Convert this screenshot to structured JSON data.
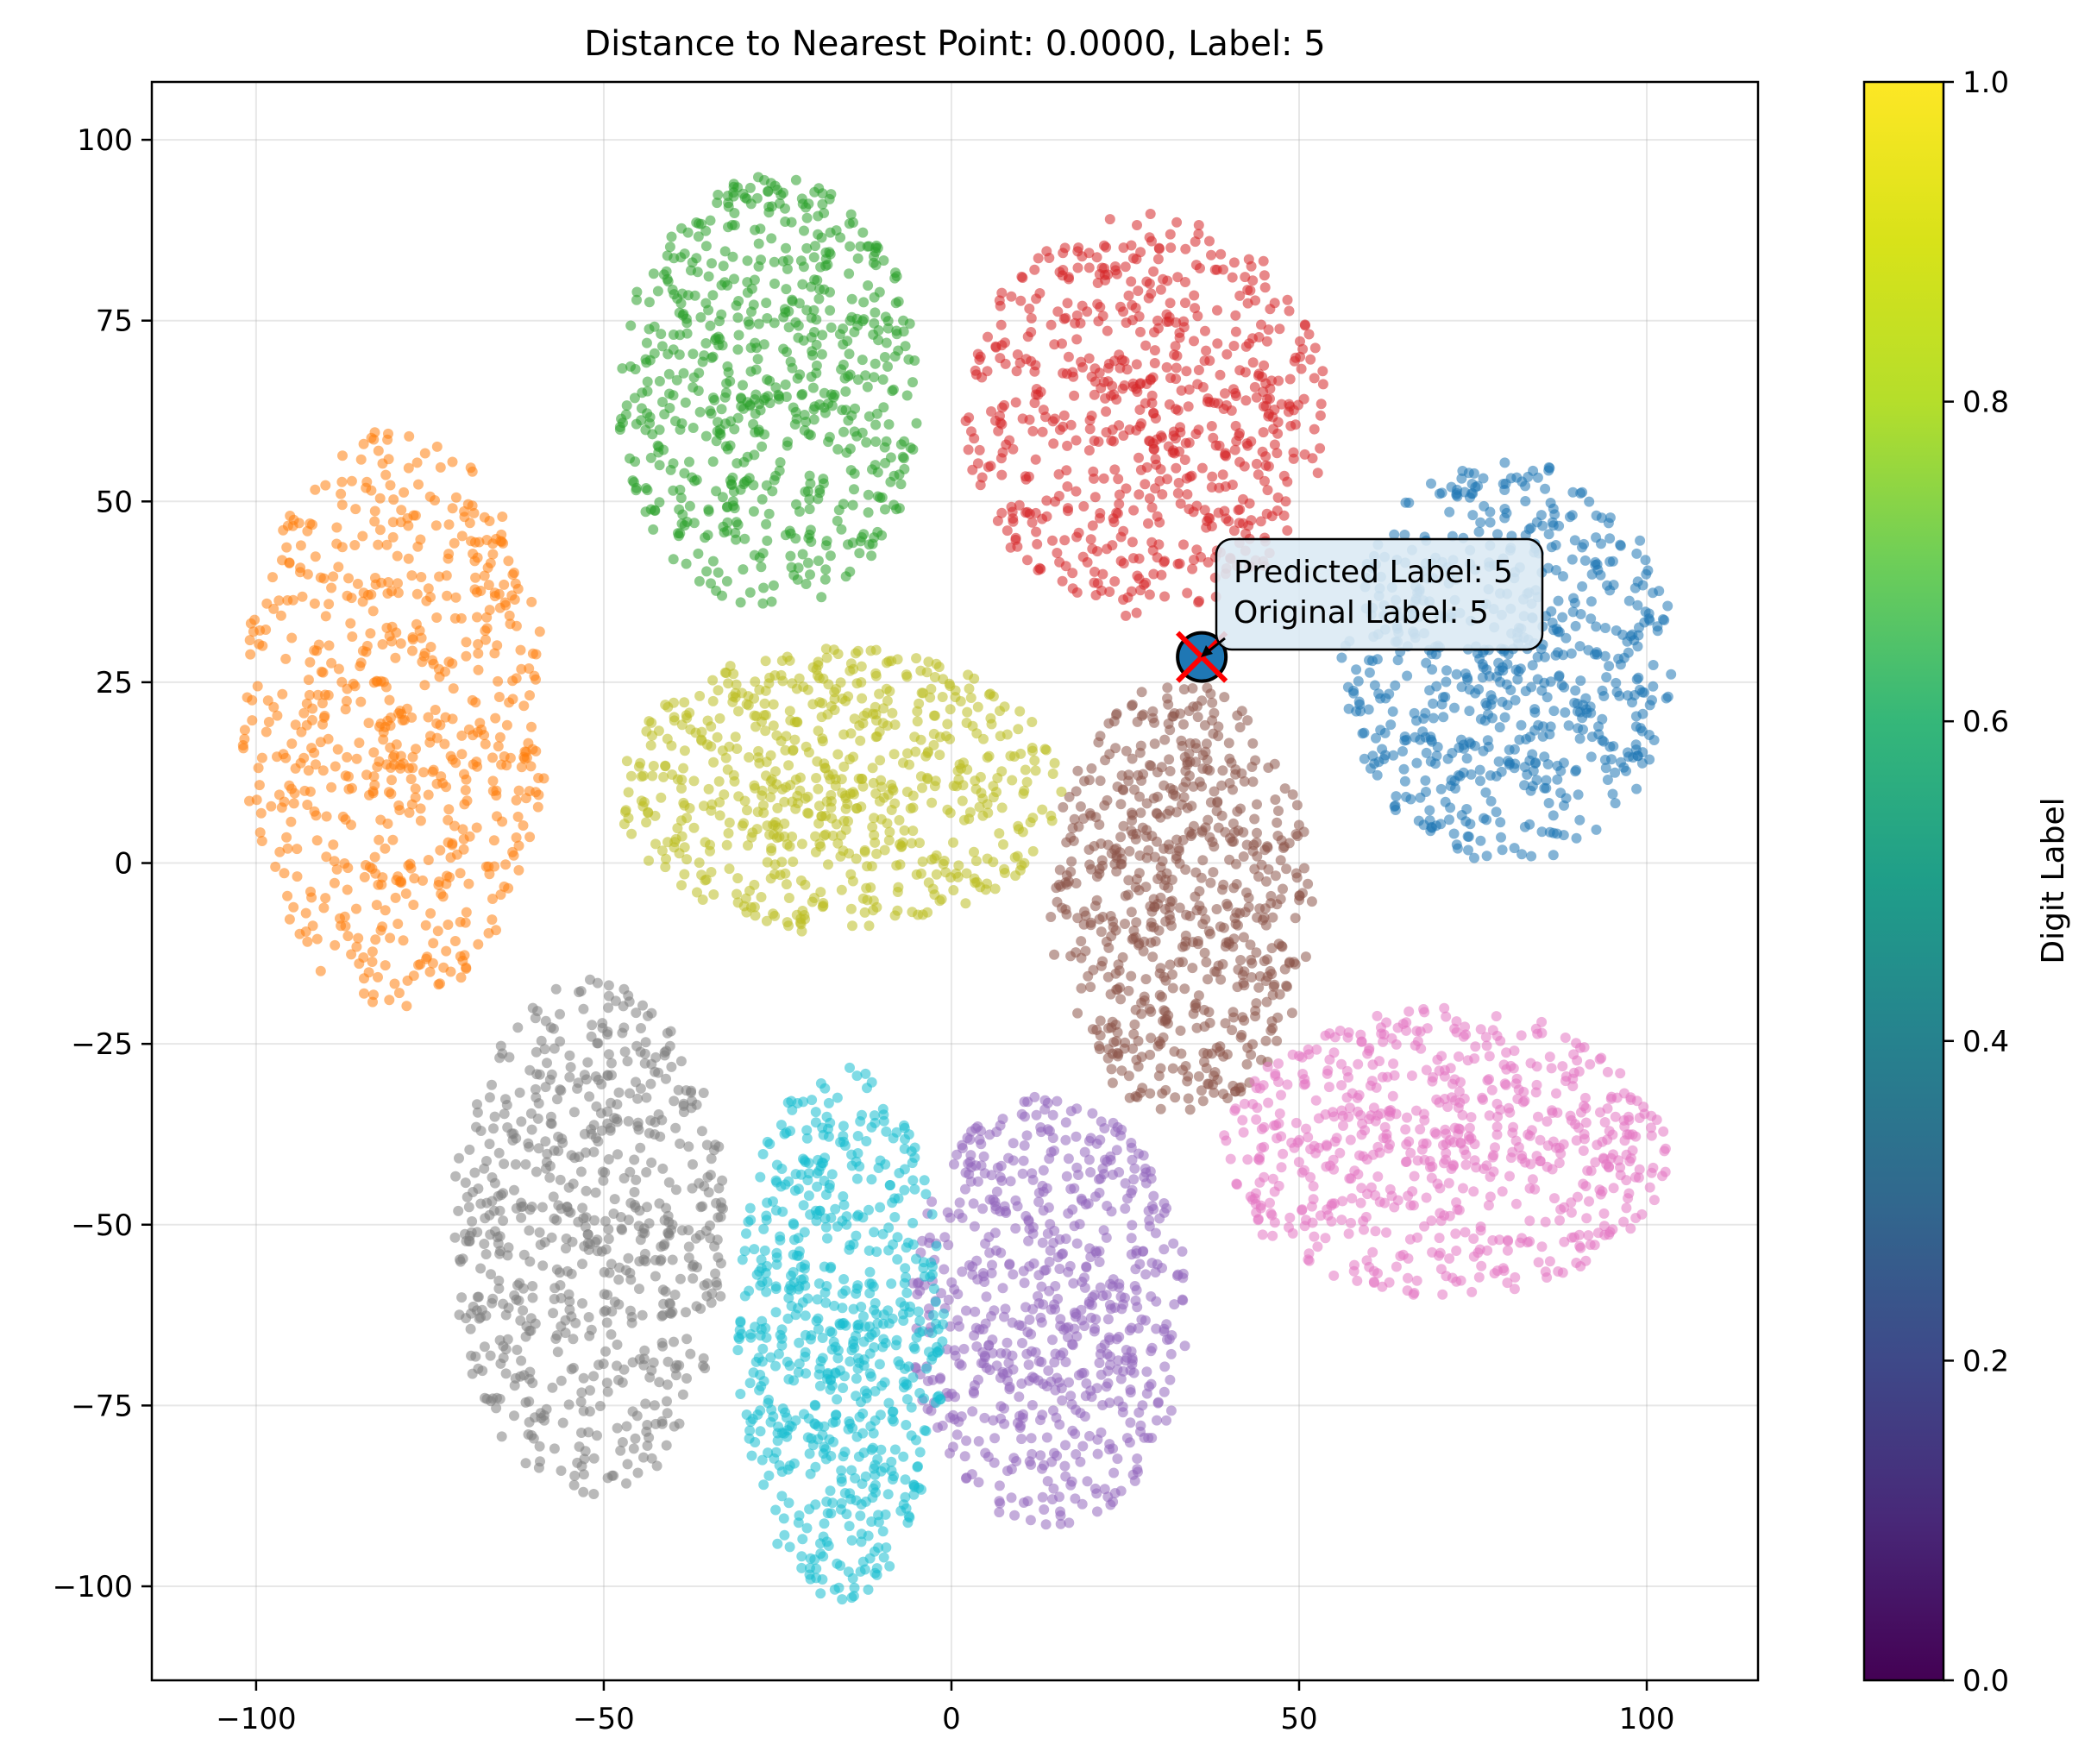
{
  "chart_data": {
    "type": "scatter",
    "title": "Distance to Nearest Point: 0.0000, Label: 5",
    "xlabel": "",
    "ylabel": "",
    "xlim": [
      -115,
      116
    ],
    "ylim": [
      -113,
      108
    ],
    "xticks": [
      -100,
      -50,
      0,
      50,
      100
    ],
    "xtick_labels": [
      "−100",
      "−50",
      "0",
      "50",
      "100"
    ],
    "yticks": [
      100,
      75,
      50,
      25,
      0,
      -25,
      -50,
      -75,
      -100
    ],
    "ytick_labels": [
      "100",
      "75",
      "50",
      "25",
      "0",
      "−25",
      "−50",
      "−75",
      "−100"
    ],
    "grid": true,
    "colorbar": {
      "label": "Digit Label",
      "range": [
        0.0,
        1.0
      ],
      "ticks": [
        0.0,
        0.2,
        0.4,
        0.6,
        0.8,
        1.0
      ],
      "tick_labels": [
        "0.0",
        "0.2",
        "0.4",
        "0.6",
        "0.8",
        "1.0"
      ],
      "colormap": "viridis"
    },
    "clusters": [
      {
        "color": "#1f77b4",
        "center": [
          80,
          28
        ],
        "size": [
          24,
          28
        ]
      },
      {
        "color": "#ff7f0e",
        "center": [
          -80,
          20
        ],
        "size": [
          22,
          40
        ]
      },
      {
        "color": "#2ca02c",
        "center": [
          -26,
          65
        ],
        "size": [
          22,
          30
        ]
      },
      {
        "color": "#d62728",
        "center": [
          28,
          62
        ],
        "size": [
          26,
          28
        ]
      },
      {
        "color": "#9467bd",
        "center": [
          14,
          -62
        ],
        "size": [
          20,
          30
        ]
      },
      {
        "color": "#8c564b",
        "center": [
          33,
          -5
        ],
        "size": [
          19,
          30
        ]
      },
      {
        "color": "#e377c2",
        "center": [
          71,
          -40
        ],
        "size": [
          32,
          20
        ]
      },
      {
        "color": "#7f7f7f",
        "center": [
          -52,
          -52
        ],
        "size": [
          20,
          36
        ]
      },
      {
        "color": "#bcbd22",
        "center": [
          -16,
          10
        ],
        "size": [
          32,
          20
        ]
      },
      {
        "color": "#17becf",
        "center": [
          -16,
          -65
        ],
        "size": [
          15,
          37
        ]
      }
    ],
    "highlight": {
      "point": [
        36,
        28.5
      ],
      "marker_color": "#1f77b4",
      "cross_color": "#ff0000"
    },
    "annotation": {
      "lines": [
        "Predicted Label: 5",
        "Original Label: 5"
      ]
    }
  }
}
